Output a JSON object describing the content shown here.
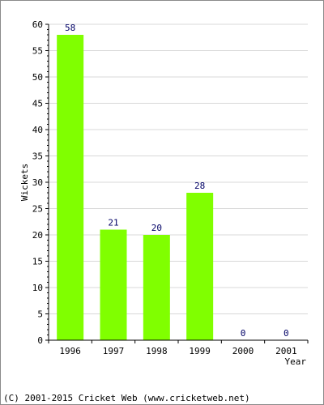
{
  "chart_data": {
    "type": "bar",
    "categories": [
      "1996",
      "1997",
      "1998",
      "1999",
      "2000",
      "2001"
    ],
    "values": [
      58,
      21,
      20,
      28,
      0,
      0
    ],
    "title": "",
    "xlabel": "Year",
    "ylabel": "Wickets",
    "ylim": [
      0,
      60
    ],
    "yticks": [
      0,
      5,
      10,
      15,
      20,
      25,
      30,
      35,
      40,
      45,
      50,
      55,
      60
    ],
    "grid": true,
    "legend": "none",
    "bar_color": "#80ff00",
    "label_color": "#000066"
  },
  "footer": {
    "copyright": "(C) 2001-2015 Cricket Web (www.cricketweb.net)"
  }
}
